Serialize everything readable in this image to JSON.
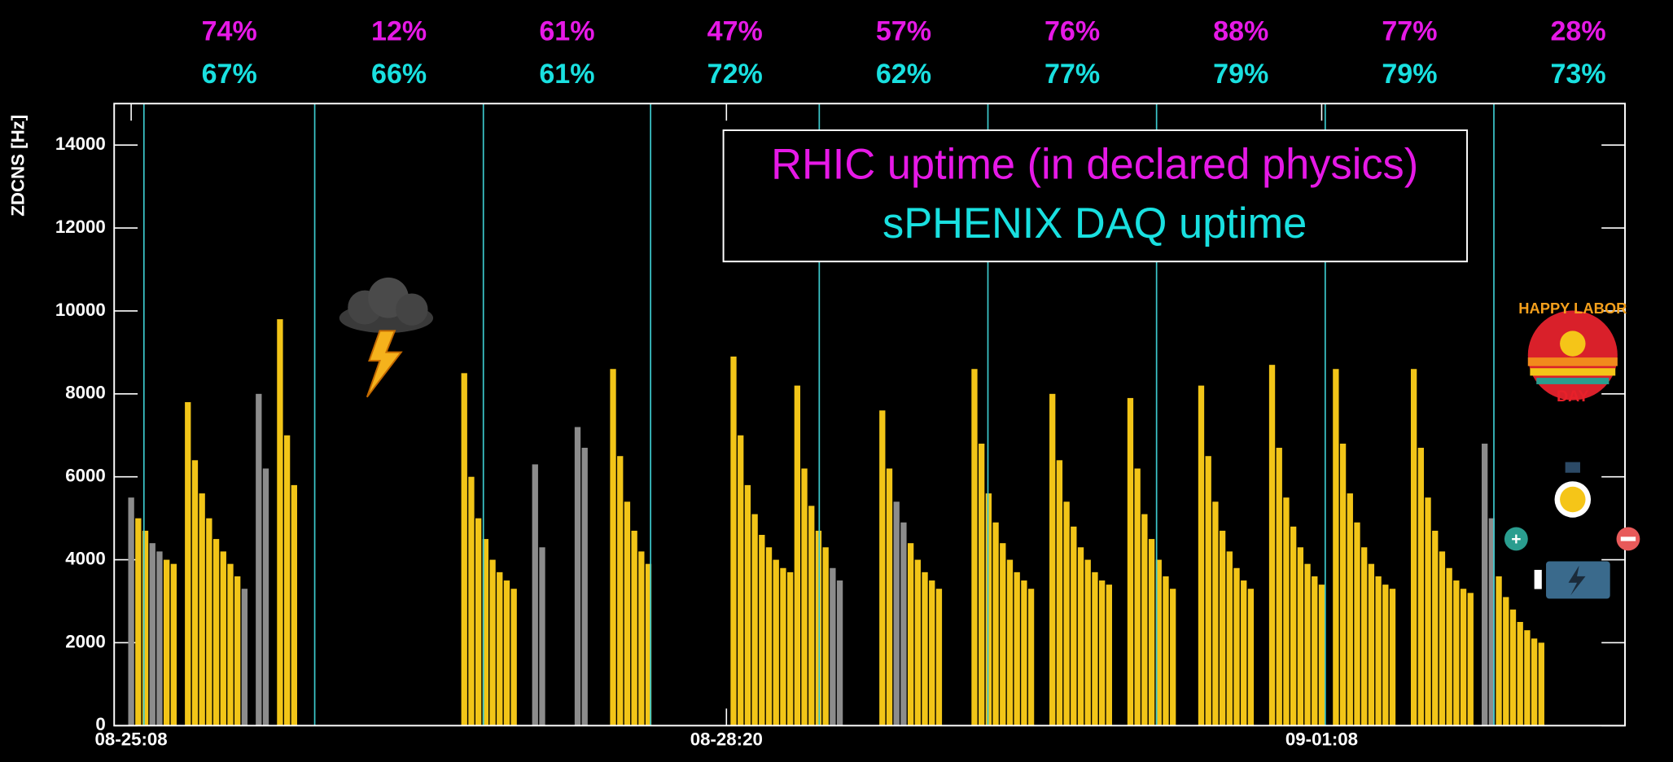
{
  "chart_data": {
    "type": "bar",
    "y_label": "ZDCNS [Hz]",
    "xlim": [
      -2.4,
      210.8
    ],
    "xticks": [
      {
        "value": 0,
        "label": "08-25:08"
      },
      {
        "value": 84,
        "label": "08-28:20"
      },
      {
        "value": 168,
        "label": "09-01:08"
      }
    ],
    "ylim": [
      0,
      15000
    ],
    "yticks": [
      0,
      2000,
      4000,
      6000,
      8000,
      10000,
      12000,
      14000
    ],
    "day_boundaries": [
      1.8,
      25.9,
      49.7,
      73.3,
      97.1,
      120.9,
      144.7,
      168.5,
      192.3
    ],
    "day_line_color": "#3cc8cc",
    "uptime_rows": [
      {
        "name": "RHIC uptime (in declared physics)",
        "color": "#e619e6",
        "values": [
          74,
          12,
          61,
          47,
          57,
          76,
          88,
          77,
          28
        ],
        "value_labels": [
          "74%",
          "12%",
          "61%",
          "47%",
          "57%",
          "76%",
          "88%",
          "77%",
          "28%"
        ]
      },
      {
        "name": "sPHENIX DAQ uptime",
        "color": "#19e0e0",
        "values": [
          67,
          66,
          61,
          72,
          62,
          77,
          79,
          79,
          73
        ],
        "value_labels": [
          "67%",
          "66%",
          "61%",
          "72%",
          "62%",
          "77%",
          "79%",
          "79%",
          "73%"
        ]
      }
    ],
    "series": [
      {
        "color": "#f2c518",
        "x": [
          1,
          2,
          5,
          6,
          8,
          9,
          10,
          11,
          12,
          13,
          14,
          15,
          21,
          22,
          23,
          47,
          48,
          49,
          50,
          51,
          52,
          53,
          54,
          68,
          69,
          70,
          71,
          72,
          73,
          85,
          86,
          87,
          88,
          89,
          90,
          91,
          92,
          93,
          94,
          95,
          96,
          97,
          98,
          106,
          107,
          110,
          111,
          112,
          113,
          114,
          119,
          120,
          121,
          122,
          123,
          124,
          125,
          126,
          127,
          130,
          131,
          132,
          133,
          134,
          135,
          136,
          137,
          138,
          141,
          142,
          143,
          144,
          145,
          146,
          147,
          151,
          152,
          153,
          154,
          155,
          156,
          157,
          158,
          161,
          162,
          163,
          164,
          165,
          166,
          167,
          168,
          170,
          171,
          172,
          173,
          174,
          175,
          176,
          177,
          178,
          181,
          182,
          183,
          184,
          185,
          186,
          187,
          188,
          189,
          193,
          194,
          195,
          196,
          197,
          198,
          199
        ],
        "values": [
          5000,
          4700,
          4000,
          3900,
          7800,
          6400,
          5600,
          5000,
          4500,
          4200,
          3900,
          3600,
          9800,
          7000,
          5800,
          8500,
          6000,
          5000,
          4500,
          4000,
          3700,
          3500,
          3300,
          8600,
          6500,
          5400,
          4700,
          4200,
          3900,
          8900,
          7000,
          5800,
          5100,
          4600,
          4300,
          4000,
          3800,
          3700,
          8200,
          6200,
          5300,
          4700,
          4300,
          7600,
          6200,
          4400,
          4000,
          3700,
          3500,
          3300,
          8600,
          6800,
          5600,
          4900,
          4400,
          4000,
          3700,
          3500,
          3300,
          8000,
          6400,
          5400,
          4800,
          4300,
          4000,
          3700,
          3500,
          3400,
          7900,
          6200,
          5100,
          4500,
          4000,
          3600,
          3300,
          8200,
          6500,
          5400,
          4700,
          4200,
          3800,
          3500,
          3300,
          8700,
          6700,
          5500,
          4800,
          4300,
          3900,
          3600,
          3400,
          8600,
          6800,
          5600,
          4900,
          4300,
          3900,
          3600,
          3400,
          3300,
          8600,
          6700,
          5500,
          4700,
          4200,
          3800,
          3500,
          3300,
          3200,
          3600,
          3100,
          2800,
          2500,
          2300,
          2100,
          2000
        ]
      },
      {
        "color": "#8c8c8c",
        "x": [
          0,
          3,
          4,
          16,
          18,
          19,
          57,
          58,
          63,
          64,
          99,
          100,
          108,
          109,
          191,
          192
        ],
        "values": [
          5500,
          4400,
          4200,
          3300,
          8000,
          6200,
          6300,
          4300,
          7200,
          6700,
          3800,
          3500,
          5400,
          4900,
          6800,
          5000
        ]
      }
    ],
    "annotations": [
      "HAPPY LABOR",
      "DAY"
    ]
  }
}
